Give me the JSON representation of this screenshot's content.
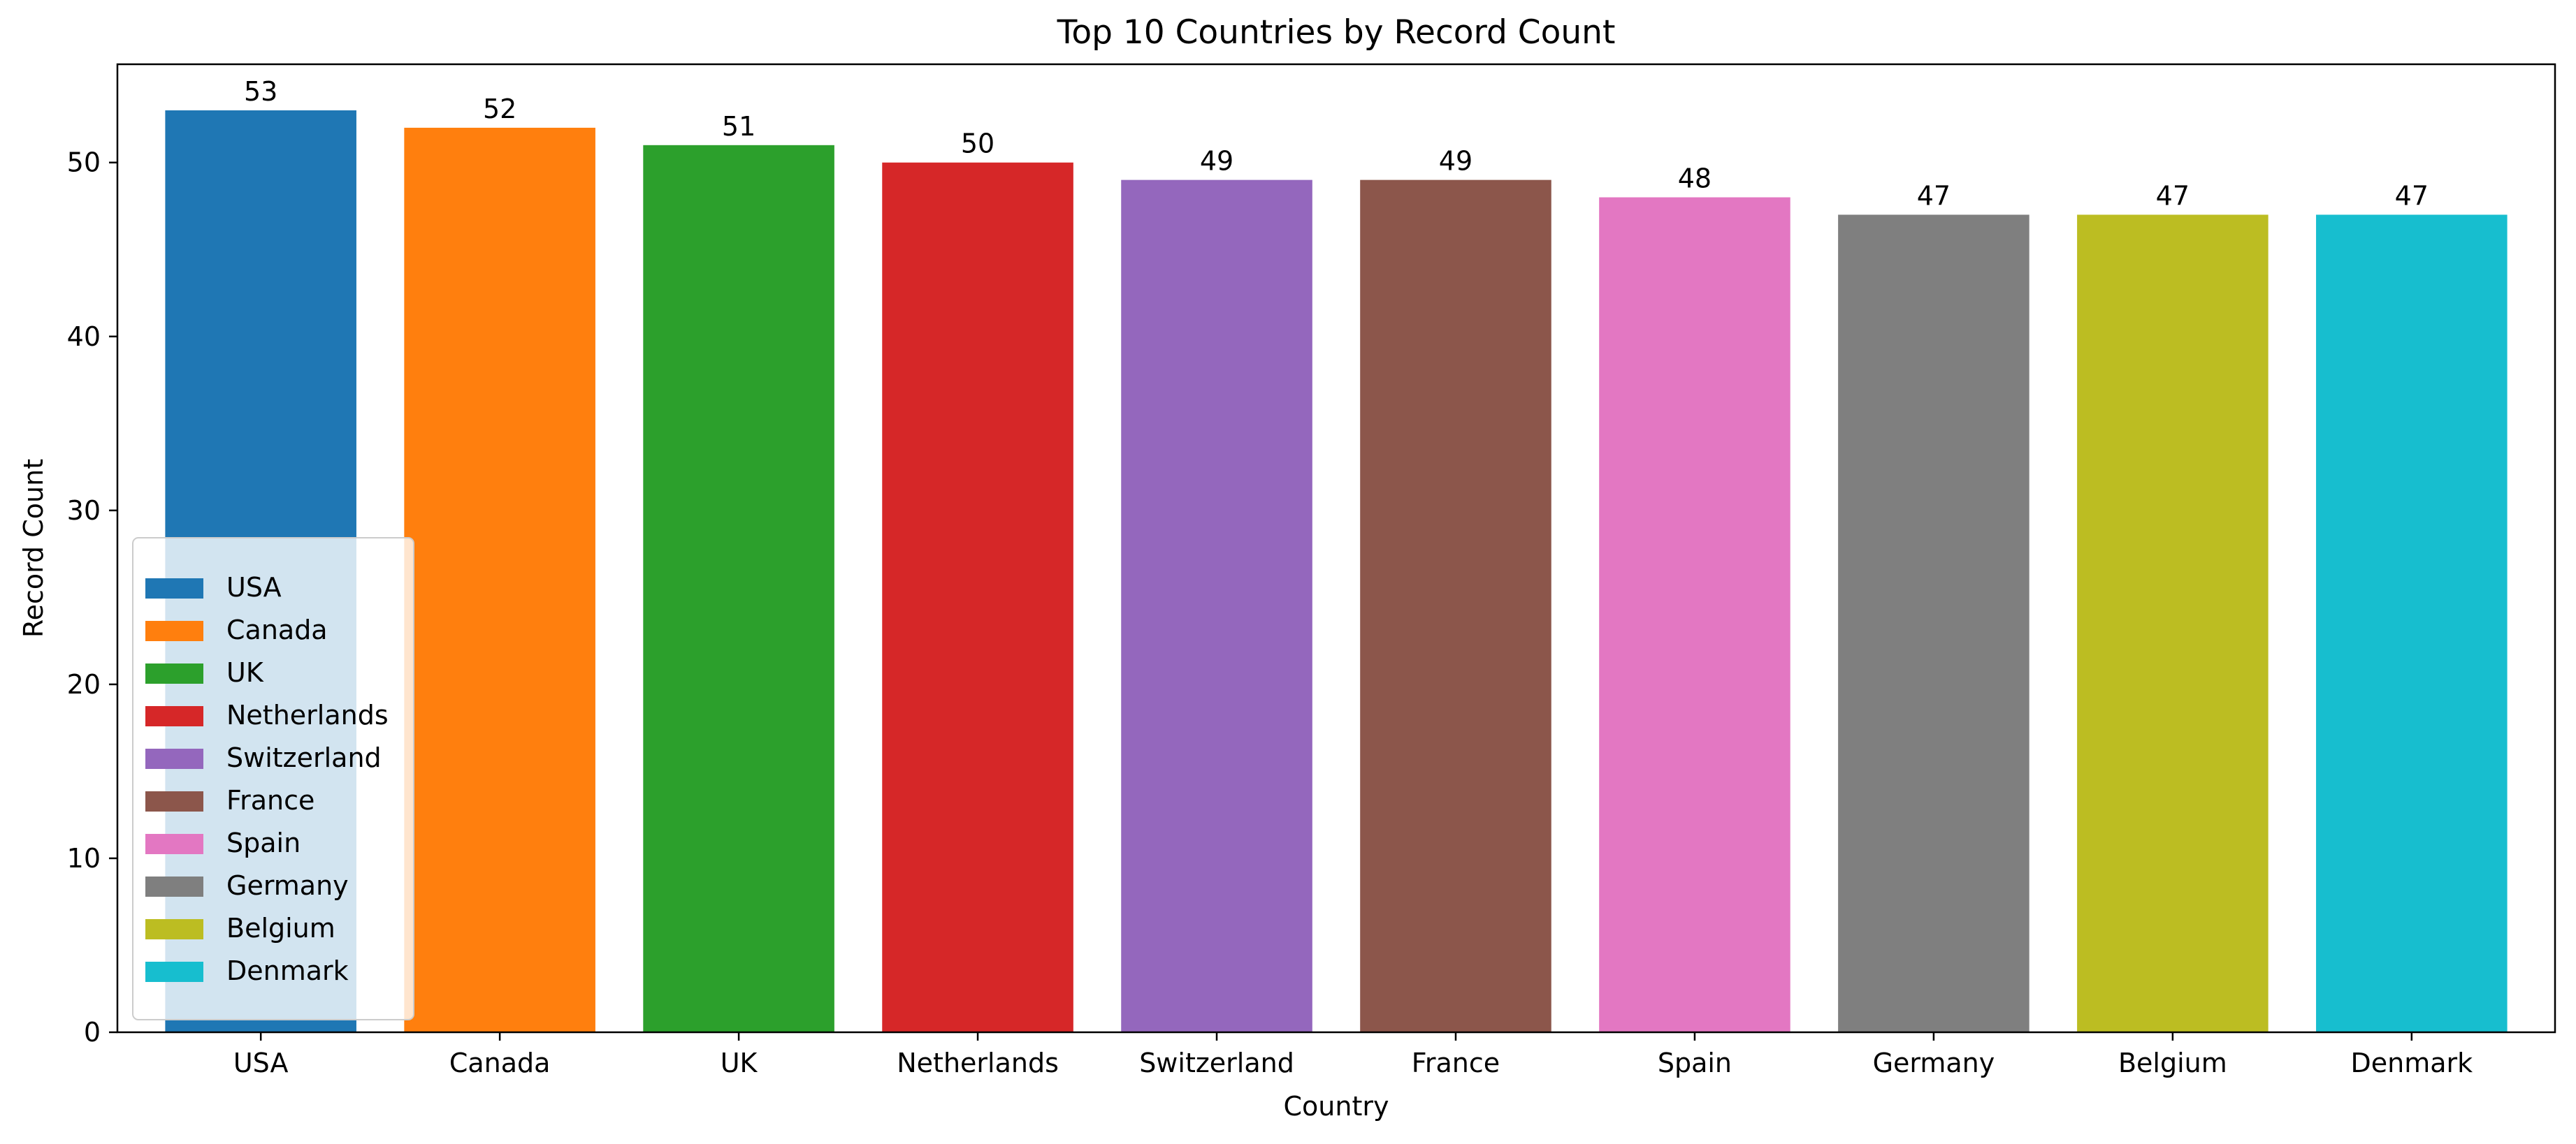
{
  "chart_data": {
    "type": "bar",
    "title": "Top 10 Countries by Record Count",
    "xlabel": "Country",
    "ylabel": "Record Count",
    "categories": [
      "USA",
      "Canada",
      "UK",
      "Netherlands",
      "Switzerland",
      "France",
      "Spain",
      "Germany",
      "Belgium",
      "Denmark"
    ],
    "values": [
      53,
      52,
      51,
      50,
      49,
      49,
      48,
      47,
      47,
      47
    ],
    "colors": [
      "#1f77b4",
      "#ff7f0e",
      "#2ca02c",
      "#d62728",
      "#9467bd",
      "#8c564b",
      "#e377c2",
      "#7f7f7f",
      "#bcbd22",
      "#17becf"
    ],
    "ylim": [
      0,
      55.65
    ],
    "yticks": [
      0,
      10,
      20,
      30,
      40,
      50
    ],
    "grid": false,
    "legend": {
      "position": "lower-left",
      "entries": [
        "USA",
        "Canada",
        "UK",
        "Netherlands",
        "Switzerland",
        "France",
        "Spain",
        "Germany",
        "Belgium",
        "Denmark"
      ]
    },
    "data_labels": true
  }
}
